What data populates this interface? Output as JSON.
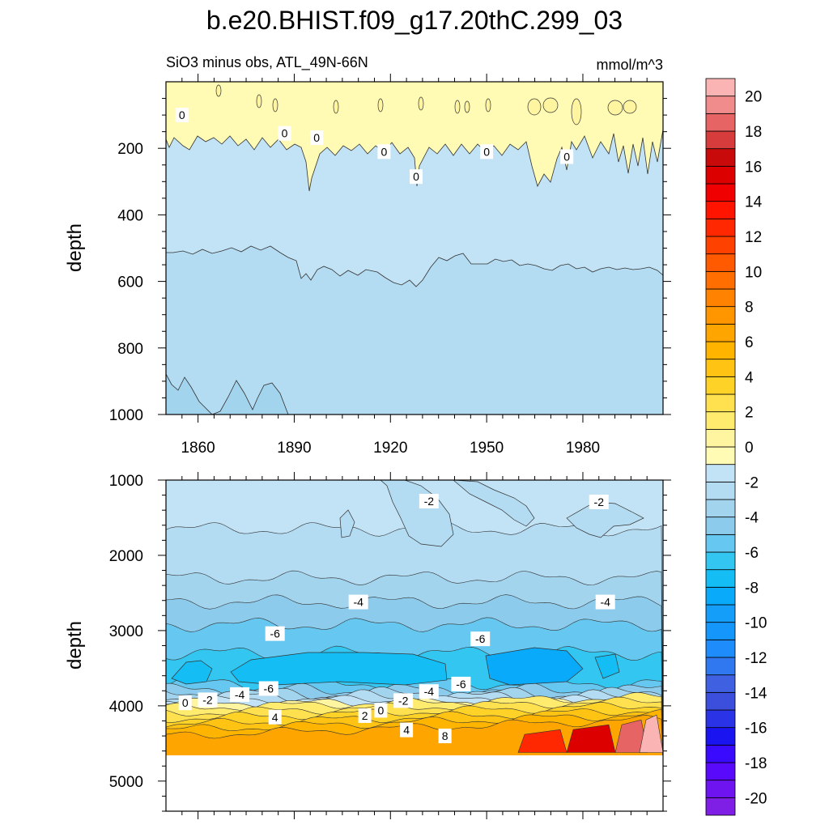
{
  "chart_data": {
    "type": "heatmap",
    "title": "b.e20.BHIST.f09_g17.20thC.299_03",
    "subtitle_left": "SiO3 minus obs, ATL_49N-66N",
    "subtitle_right": "mmol/m^3",
    "xlabel": "",
    "ylabel": "depth",
    "x_ticks": [
      "1860",
      "1890",
      "1920",
      "1950",
      "1980"
    ],
    "xlim": [
      1850,
      2005
    ],
    "top_panel": {
      "ylim": [
        0,
        1000
      ],
      "y_ticks": [
        "200",
        "400",
        "600",
        "800",
        "1000"
      ],
      "bands": [
        {
          "from": 0,
          "to_base": 150,
          "value": 0.5
        },
        {
          "from": 150,
          "to_base": 560,
          "value": -0.5
        },
        {
          "from": 560,
          "to_base": 940,
          "value": -1.5
        },
        {
          "from": 940,
          "to_base": 1000,
          "value": -2.5
        }
      ],
      "contour_labels": [
        {
          "text": "0",
          "year": 1855,
          "depth": 100
        },
        {
          "text": "0",
          "year": 1887,
          "depth": 155
        },
        {
          "text": "0",
          "year": 1897,
          "depth": 168
        },
        {
          "text": "0",
          "year": 1918,
          "depth": 210
        },
        {
          "text": "0",
          "year": 1928,
          "depth": 285
        },
        {
          "text": "0",
          "year": 1950,
          "depth": 210
        },
        {
          "text": "0",
          "year": 1975,
          "depth": 225
        }
      ]
    },
    "bottom_panel": {
      "ylim": [
        1000,
        5400
      ],
      "y_ticks": [
        "1000",
        "2000",
        "3000",
        "4000",
        "5000"
      ],
      "bottom_depth": 4620,
      "levels": [
        {
          "depth": 1650,
          "value": -2
        },
        {
          "depth": 2300,
          "value": -3
        },
        {
          "depth": 2620,
          "value": -4
        },
        {
          "depth": 2920,
          "value": -5
        },
        {
          "depth": 3300,
          "value": -6
        },
        {
          "depth": 3700,
          "value": -5
        },
        {
          "depth": 3790,
          "value": -4
        },
        {
          "depth": 3840,
          "value": -3
        },
        {
          "depth": 3880,
          "value": -2
        },
        {
          "depth": 3920,
          "value": -1
        },
        {
          "depth": 3960,
          "value": 0
        },
        {
          "depth": 4030,
          "value": 1
        },
        {
          "depth": 4100,
          "value": 2
        },
        {
          "depth": 4170,
          "value": 3
        },
        {
          "depth": 4250,
          "value": 4
        },
        {
          "depth": 4320,
          "value": 5
        },
        {
          "depth": 4400,
          "value": 6
        }
      ],
      "contour_labels": [
        {
          "text": "-2",
          "year": 1932,
          "depth": 1280
        },
        {
          "text": "-2",
          "year": 1985,
          "depth": 1290
        },
        {
          "text": "-4",
          "year": 1910,
          "depth": 2620
        },
        {
          "text": "-4",
          "year": 1987,
          "depth": 2620
        },
        {
          "text": "-6",
          "year": 1884,
          "depth": 3040
        },
        {
          "text": "-6",
          "year": 1948,
          "depth": 3110
        },
        {
          "text": "0",
          "year": 1856,
          "depth": 3960
        },
        {
          "text": "-2",
          "year": 1863,
          "depth": 3920
        },
        {
          "text": "-4",
          "year": 1873,
          "depth": 3850
        },
        {
          "text": "-6",
          "year": 1882,
          "depth": 3770
        },
        {
          "text": "4",
          "year": 1884,
          "depth": 4150
        },
        {
          "text": "2",
          "year": 1912,
          "depth": 4130
        },
        {
          "text": "0",
          "year": 1917,
          "depth": 4060
        },
        {
          "text": "-2",
          "year": 1924,
          "depth": 3930
        },
        {
          "text": "-4",
          "year": 1932,
          "depth": 3810
        },
        {
          "text": "-6",
          "year": 1942,
          "depth": 3710
        },
        {
          "text": "4",
          "year": 1925,
          "depth": 4320
        },
        {
          "text": "8",
          "year": 1937,
          "depth": 4400
        }
      ]
    },
    "colorbar": {
      "label_values": [
        "20",
        "18",
        "16",
        "14",
        "12",
        "10",
        "8",
        "6",
        "4",
        "2",
        "0",
        "-2",
        "-4",
        "-6",
        "-8",
        "-10",
        "-12",
        "-14",
        "-16",
        "-18",
        "-20"
      ],
      "range": [
        -21,
        21
      ],
      "colors": [
        "#7F1FE6",
        "#6E14F0",
        "#5A0AFA",
        "#3A0AFF",
        "#1A14F0",
        "#2A34E6",
        "#3C4FDC",
        "#3F60E0",
        "#2F78F0",
        "#1E8CFA",
        "#1496FA",
        "#149EFA",
        "#0AAAFA",
        "#14BEF5",
        "#33C6F0",
        "#66C8F0",
        "#8CCBEB",
        "#A3D4EE",
        "#B3DBF2",
        "#C2E3F5",
        "#FFFAB4",
        "#FFF5A0",
        "#FFEB6E",
        "#FFE150",
        "#FFD228",
        "#FFC314",
        "#FFB400",
        "#FFA500",
        "#FF9600",
        "#FF8200",
        "#FF6E00",
        "#FF5A00",
        "#FF4100",
        "#FF2800",
        "#FF1400",
        "#F00000",
        "#DC0000",
        "#C80A0A",
        "#D73C3C",
        "#E66464",
        "#F08C8C",
        "#FAB4B4"
      ]
    }
  }
}
